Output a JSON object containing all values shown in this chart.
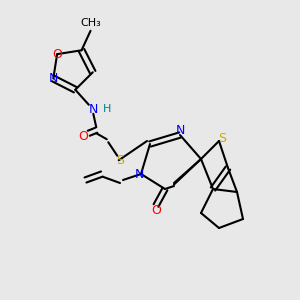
{
  "bg_color": "#e8e8e8",
  "atom_colors": {
    "N": "#0000FF",
    "O": "#FF0000",
    "S": "#CCAA00",
    "H": "#008080",
    "C": "#000000"
  },
  "bond_color": "#000000",
  "bond_lw": 1.5,
  "font_size": 9,
  "fig_size": [
    3.0,
    3.0
  ],
  "dpi": 100
}
